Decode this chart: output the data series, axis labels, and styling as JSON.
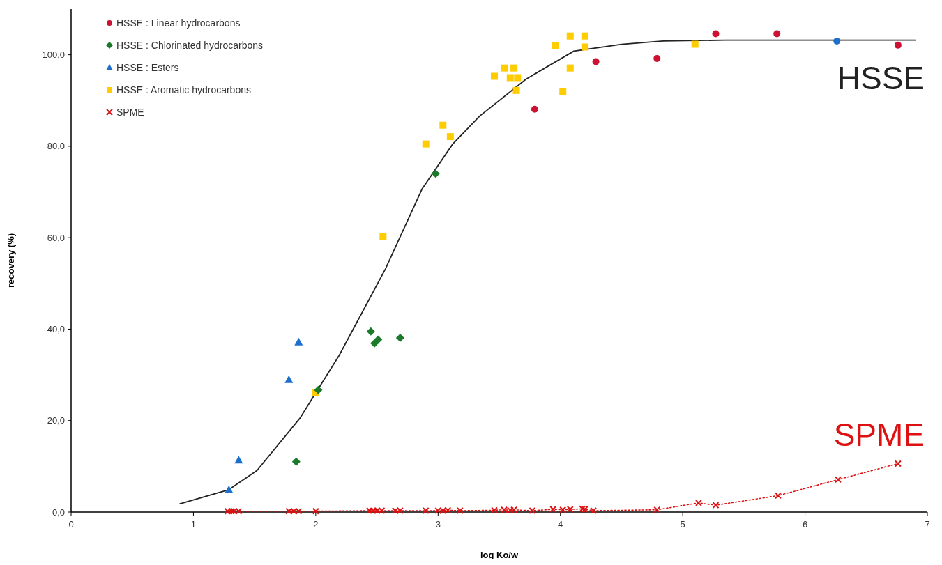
{
  "chart_data": {
    "type": "scatter",
    "xlabel": "log Ko/w",
    "ylabel": "recovery (%)",
    "xlim": [
      0,
      7
    ],
    "ylim": [
      0,
      110
    ],
    "xticks": [
      0,
      1,
      2,
      3,
      4,
      5,
      6,
      7
    ],
    "yticks": [
      {
        "value": 0,
        "label": "0,0"
      },
      {
        "value": 20,
        "label": "20,0"
      },
      {
        "value": 40,
        "label": "40,0"
      },
      {
        "value": 60,
        "label": "60,0"
      },
      {
        "value": 80,
        "label": "80,0"
      },
      {
        "value": 100,
        "label": "100,0"
      }
    ],
    "grid": false,
    "legend": "top left",
    "annotations": [
      "HSSE",
      "SPME"
    ],
    "series": [
      {
        "name": "HSSE : Linear hydrocarbons",
        "marker": "circle",
        "color": "#cc1133",
        "colors": [
          "#cc1133",
          "#cc1133",
          "#cc1133",
          "#cc1133",
          "#cc1133",
          "#1e6fcc",
          "#cc1133"
        ],
        "x": [
          3.79,
          4.29,
          4.79,
          5.27,
          5.77,
          6.26,
          6.76
        ],
        "values": [
          88.1,
          98.5,
          99.2,
          104.6,
          104.6,
          103.0,
          102.1
        ]
      },
      {
        "name": "HSSE : Chlorinated hydrocarbons",
        "marker": "diamond",
        "color": "#1a7a2a",
        "x": [
          1.84,
          2.02,
          2.45,
          2.48,
          2.51,
          2.69,
          2.98
        ],
        "values": [
          11.0,
          26.7,
          39.5,
          36.9,
          37.7,
          38.1,
          74.0
        ]
      },
      {
        "name": "HSSE : Esters",
        "marker": "triangle",
        "color": "#1e6fcc",
        "x": [
          1.29,
          1.37,
          1.78,
          1.86
        ],
        "values": [
          4.9,
          11.4,
          29.0,
          37.2
        ]
      },
      {
        "name": "HSSE : Aromatic hydrocarbons",
        "marker": "square",
        "color": "#ffcc00",
        "x": [
          2.0,
          2.55,
          2.9,
          3.04,
          3.1,
          3.46,
          3.54,
          3.62,
          3.59,
          3.65,
          3.64,
          3.96,
          4.08,
          4.2,
          4.2,
          4.08,
          4.02,
          5.1
        ],
        "values": [
          26.1,
          60.2,
          80.5,
          84.6,
          82.1,
          95.3,
          97.1,
          97.1,
          95.0,
          95.0,
          92.2,
          102.0,
          104.1,
          104.1,
          101.7,
          97.1,
          91.9,
          102.3
        ]
      },
      {
        "name": "SPME",
        "type": "line",
        "marker": "cross",
        "line_style": "dotted",
        "color": "#dd1111",
        "x": [
          1.28,
          1.31,
          1.33,
          1.37,
          1.78,
          1.82,
          1.86,
          2.0,
          2.44,
          2.47,
          2.5,
          2.54,
          2.65,
          2.69,
          2.9,
          3.0,
          3.04,
          3.08,
          3.18,
          3.46,
          3.54,
          3.59,
          3.62,
          3.77,
          3.94,
          4.02,
          4.08,
          4.18,
          4.2,
          4.27,
          4.79,
          5.13,
          5.27,
          5.78,
          6.27,
          6.76
        ],
        "values": [
          0.2,
          0.2,
          0.2,
          0.2,
          0.2,
          0.2,
          0.2,
          0.2,
          0.3,
          0.3,
          0.3,
          0.3,
          0.3,
          0.3,
          0.3,
          0.3,
          0.3,
          0.4,
          0.3,
          0.4,
          0.5,
          0.4,
          0.5,
          0.3,
          0.6,
          0.5,
          0.6,
          0.7,
          0.6,
          0.3,
          0.5,
          2.0,
          1.5,
          3.6,
          7.1,
          10.6
        ]
      },
      {
        "type": "line",
        "marker": "none",
        "line_style": "solid",
        "color": "#222222",
        "x": [
          0.89,
          1.29,
          1.52,
          1.87,
          2.19,
          2.57,
          2.87,
          3.12,
          3.34,
          3.72,
          4.11,
          4.5,
          4.84,
          5.35,
          6.9
        ],
        "values": [
          1.8,
          4.9,
          9.1,
          20.5,
          34.2,
          53.2,
          70.7,
          80.5,
          86.6,
          94.7,
          100.8,
          102.3,
          103.0,
          103.2,
          103.2
        ]
      }
    ]
  }
}
